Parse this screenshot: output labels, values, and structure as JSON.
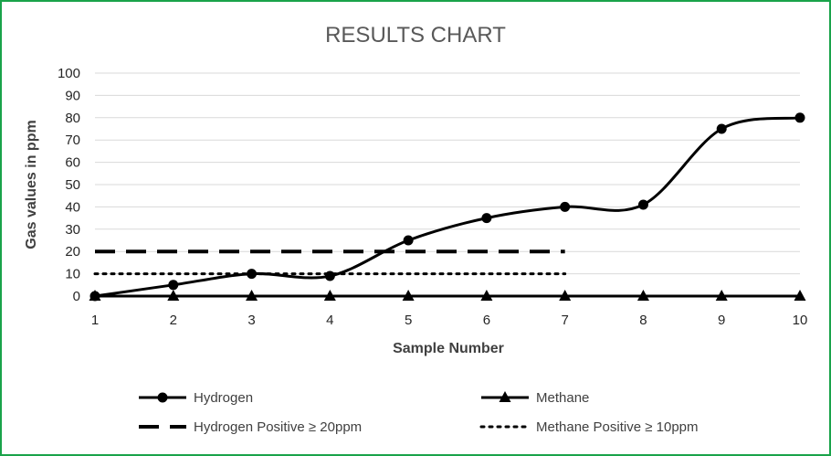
{
  "chart_data": {
    "type": "line",
    "title": "RESULTS CHART",
    "xlabel": "Sample Number",
    "ylabel": "Gas values in ppm",
    "x": [
      1,
      2,
      3,
      4,
      5,
      6,
      7,
      8,
      9,
      10
    ],
    "xlim": [
      1,
      10
    ],
    "ylim": [
      0,
      100
    ],
    "yticks": [
      0,
      10,
      20,
      30,
      40,
      50,
      60,
      70,
      80,
      90,
      100
    ],
    "grid": true,
    "legend_position": "bottom",
    "series": [
      {
        "name": "Hydrogen",
        "style": "solid-smooth",
        "marker": "circle",
        "color": "#000000",
        "x": [
          1,
          2,
          3,
          4,
          5,
          6,
          7,
          8,
          9,
          10
        ],
        "values": [
          0,
          5,
          10,
          9,
          25,
          35,
          40,
          41,
          75,
          80
        ]
      },
      {
        "name": "Methane",
        "style": "solid",
        "marker": "triangle",
        "color": "#000000",
        "x": [
          1,
          2,
          3,
          4,
          5,
          6,
          7,
          8,
          9,
          10
        ],
        "values": [
          0,
          0,
          0,
          0,
          0,
          0,
          0,
          0,
          0,
          0
        ]
      },
      {
        "name": "Hydrogen Positive ≥ 20ppm",
        "style": "dashed",
        "marker": "none",
        "color": "#000000",
        "x": [
          1,
          7
        ],
        "values": [
          20,
          20
        ]
      },
      {
        "name": "Methane Positive ≥ 10ppm",
        "style": "dotted",
        "marker": "none",
        "color": "#000000",
        "x": [
          1,
          7
        ],
        "values": [
          10,
          10
        ]
      }
    ]
  },
  "colors": {
    "border": "#1aa34a",
    "gridline": "#d9d9d9",
    "line": "#000000"
  }
}
